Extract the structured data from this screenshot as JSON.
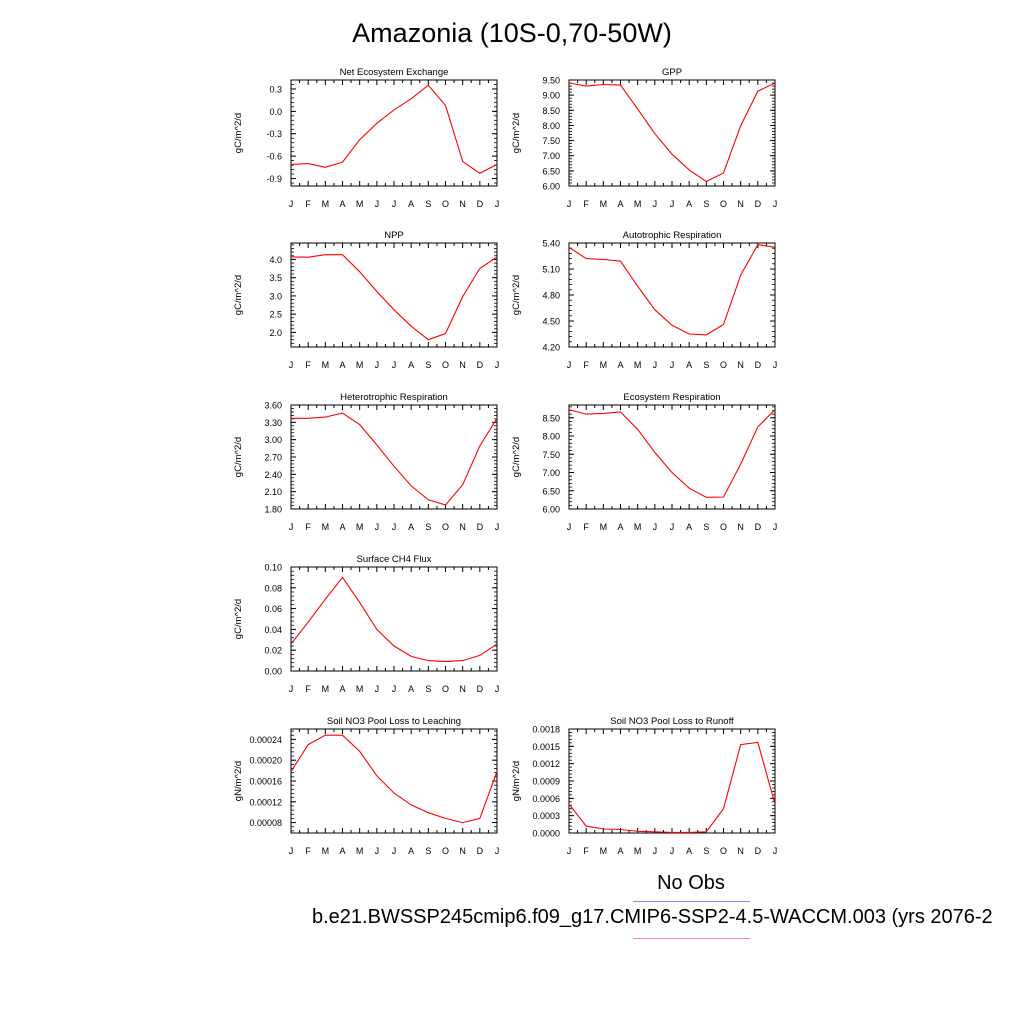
{
  "title": "Amazonia (10S-0,70-50W)",
  "legend": {
    "label": "No Obs",
    "case_name": "b.e21.BWSSP245cmip6.f09_g17.CMIP6-SSP2-4.5-WACCM.003 (yrs 2076-2",
    "line_color": "#ff0000"
  },
  "chart_data": [
    {
      "type": "line",
      "title": "Net Ecosystem Exchange",
      "ylabel": "gC/m^2/d",
      "xlabels": [
        "J",
        "F",
        "M",
        "A",
        "M",
        "J",
        "J",
        "A",
        "S",
        "O",
        "N",
        "D",
        "J"
      ],
      "ylim": [
        -1.0,
        0.42
      ],
      "yticks": [
        -0.9,
        -0.6,
        -0.3,
        0.0,
        0.3
      ],
      "yticklabels": [
        "-0.9",
        "-0.6",
        "-0.3",
        "0.0",
        "0.3"
      ],
      "values": [
        -0.71,
        -0.7,
        -0.75,
        -0.68,
        -0.38,
        -0.16,
        0.02,
        0.17,
        0.35,
        0.08,
        -0.67,
        -0.83,
        -0.71
      ]
    },
    {
      "type": "line",
      "title": "GPP",
      "ylabel": "gC/m^2/d",
      "xlabels": [
        "J",
        "F",
        "M",
        "A",
        "M",
        "J",
        "J",
        "A",
        "S",
        "O",
        "N",
        "D",
        "J"
      ],
      "ylim": [
        6.0,
        9.5
      ],
      "yticks": [
        6.0,
        6.5,
        7.0,
        7.5,
        8.0,
        8.5,
        9.0,
        9.5
      ],
      "yticklabels": [
        "6.00",
        "6.50",
        "7.00",
        "7.50",
        "8.00",
        "8.50",
        "9.00",
        "9.50"
      ],
      "values": [
        9.4,
        9.3,
        9.35,
        9.33,
        8.54,
        7.73,
        7.05,
        6.53,
        6.15,
        6.43,
        7.99,
        9.13,
        9.4
      ]
    },
    {
      "type": "line",
      "title": "NPP",
      "ylabel": "gC/m^2/d",
      "xlabels": [
        "J",
        "F",
        "M",
        "A",
        "M",
        "J",
        "J",
        "A",
        "S",
        "O",
        "N",
        "D",
        "J"
      ],
      "ylim": [
        1.6,
        4.45
      ],
      "yticks": [
        2.0,
        2.5,
        3.0,
        3.5,
        4.0
      ],
      "yticklabels": [
        "2.0",
        "2.5",
        "3.0",
        "3.5",
        "4.0"
      ],
      "values": [
        4.07,
        4.06,
        4.13,
        4.13,
        3.66,
        3.12,
        2.62,
        2.17,
        1.8,
        1.97,
        2.98,
        3.75,
        4.07
      ]
    },
    {
      "type": "line",
      "title": "Autotrophic Respiration",
      "ylabel": "gC/m^2/d",
      "xlabels": [
        "J",
        "F",
        "M",
        "A",
        "M",
        "J",
        "J",
        "A",
        "S",
        "O",
        "N",
        "D",
        "J"
      ],
      "ylim": [
        4.2,
        5.4
      ],
      "yticks": [
        4.2,
        4.5,
        4.8,
        5.1,
        5.4
      ],
      "yticklabels": [
        "4.20",
        "4.50",
        "4.80",
        "5.10",
        "5.40"
      ],
      "values": [
        5.35,
        5.22,
        5.21,
        5.19,
        4.9,
        4.63,
        4.45,
        4.35,
        4.34,
        4.46,
        5.03,
        5.38,
        5.35
      ]
    },
    {
      "type": "line",
      "title": "Heterotrophic Respiration",
      "ylabel": "gC/m^2/d",
      "xlabels": [
        "J",
        "F",
        "M",
        "A",
        "M",
        "J",
        "J",
        "A",
        "S",
        "O",
        "N",
        "D",
        "J"
      ],
      "ylim": [
        1.8,
        3.6
      ],
      "yticks": [
        1.8,
        2.1,
        2.4,
        2.7,
        3.0,
        3.3,
        3.6
      ],
      "yticklabels": [
        "1.80",
        "2.10",
        "2.40",
        "2.70",
        "3.00",
        "3.30",
        "3.60"
      ],
      "values": [
        3.37,
        3.37,
        3.39,
        3.46,
        3.26,
        2.91,
        2.54,
        2.2,
        1.96,
        1.87,
        2.22,
        2.89,
        3.37
      ]
    },
    {
      "type": "line",
      "title": "Ecosystem Respiration",
      "ylabel": "gC/m^2/d",
      "xlabels": [
        "J",
        "F",
        "M",
        "A",
        "M",
        "J",
        "J",
        "A",
        "S",
        "O",
        "N",
        "D",
        "J"
      ],
      "ylim": [
        6.0,
        8.85
      ],
      "yticks": [
        6.0,
        6.5,
        7.0,
        7.5,
        8.0,
        8.5
      ],
      "yticklabels": [
        "6.00",
        "6.50",
        "7.00",
        "7.50",
        "8.00",
        "8.50"
      ],
      "values": [
        8.72,
        8.6,
        8.62,
        8.66,
        8.18,
        7.55,
        7.0,
        6.57,
        6.32,
        6.33,
        7.23,
        8.25,
        8.72
      ]
    },
    {
      "type": "line",
      "title": "Surface CH4 Flux",
      "ylabel": "gC/m^2/d",
      "xlabels": [
        "J",
        "F",
        "M",
        "A",
        "M",
        "J",
        "J",
        "A",
        "S",
        "O",
        "N",
        "D",
        "J"
      ],
      "ylim": [
        0.0,
        0.1
      ],
      "yticks": [
        0.0,
        0.02,
        0.04,
        0.06,
        0.08,
        0.1
      ],
      "yticklabels": [
        "0.00",
        "0.02",
        "0.04",
        "0.06",
        "0.08",
        "0.10"
      ],
      "values": [
        0.026,
        0.047,
        0.069,
        0.09,
        0.066,
        0.04,
        0.024,
        0.014,
        0.01,
        0.009,
        0.01,
        0.015,
        0.026
      ]
    },
    {
      "type": "line",
      "title": "Soil NO3 Pool Loss to Leaching",
      "ylabel": "gN/m^2/d",
      "xlabels": [
        "J",
        "F",
        "M",
        "A",
        "M",
        "J",
        "J",
        "A",
        "S",
        "O",
        "N",
        "D",
        "J"
      ],
      "ylim": [
        6e-05,
        0.00026
      ],
      "yticks": [
        8e-05,
        0.00012,
        0.00016,
        0.0002,
        0.00024
      ],
      "yticklabels": [
        "0.00008",
        "0.00012",
        "0.00016",
        "0.00020",
        "0.00024"
      ],
      "values": [
        0.000178,
        0.00023,
        0.000248,
        0.000248,
        0.000217,
        0.00017,
        0.000137,
        0.000114,
        9.9e-05,
        8.8e-05,
        8e-05,
        8.8e-05,
        0.000178
      ]
    },
    {
      "type": "line",
      "title": "Soil NO3 Pool Loss to Runoff",
      "ylabel": "gN/m^2/d",
      "xlabels": [
        "J",
        "F",
        "M",
        "A",
        "M",
        "J",
        "J",
        "A",
        "S",
        "O",
        "N",
        "D",
        "J"
      ],
      "ylim": [
        0.0,
        0.0018
      ],
      "yticks": [
        0.0,
        0.0003,
        0.0006,
        0.0009,
        0.0012,
        0.0015,
        0.0018
      ],
      "yticklabels": [
        "0.0000",
        "0.0003",
        "0.0006",
        "0.0009",
        "0.0012",
        "0.0015",
        "0.0018"
      ],
      "values": [
        0.0005,
        0.00012,
        7e-05,
        6e-05,
        3e-05,
        2e-05,
        1e-05,
        1e-05,
        2e-05,
        0.00042,
        0.00153,
        0.00157,
        0.0005
      ]
    }
  ]
}
